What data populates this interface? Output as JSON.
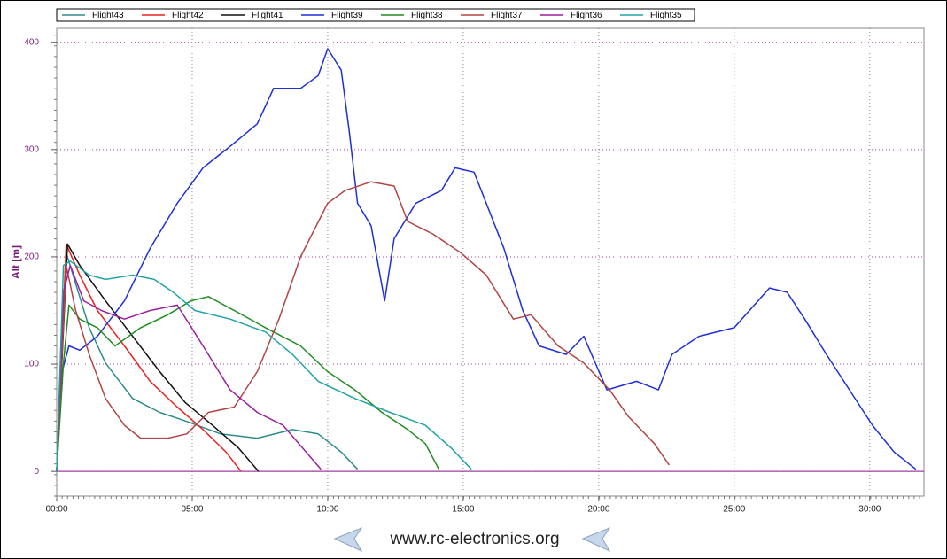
{
  "chart_data": {
    "type": "line",
    "y_label": "Alt [m]",
    "xlim": [
      0,
      32
    ],
    "ylim": [
      -23,
      413
    ],
    "xticks": [
      {
        "value": 0,
        "label": "00:00"
      },
      {
        "value": 5,
        "label": "05:00"
      },
      {
        "value": 10,
        "label": "10:00"
      },
      {
        "value": 15,
        "label": "15:00"
      },
      {
        "value": 20,
        "label": "20:00"
      },
      {
        "value": 25,
        "label": "25:00"
      },
      {
        "value": 30,
        "label": "30:00"
      }
    ],
    "yticks": [
      0,
      100,
      200,
      300,
      400
    ],
    "grid": true,
    "legend": "top",
    "series": [
      {
        "name": "Flight43",
        "color": "#2e8b8b",
        "x": [
          0,
          0.35,
          0.7,
          1.2,
          1.8,
          2.8,
          3.8,
          4.75,
          6.05,
          7.4,
          8.7,
          9.65,
          10.5,
          11.1
        ],
        "values": [
          0,
          204,
          175,
          134,
          101,
          68,
          55,
          47,
          35,
          31,
          39,
          35,
          18,
          2
        ]
      },
      {
        "name": "Flight42",
        "color": "#e8231e",
        "x": [
          0,
          0.35,
          0.85,
          1.5,
          2.5,
          3.45,
          4.45,
          5.4,
          6.25,
          6.8
        ],
        "values": [
          0,
          212,
          183,
          150,
          117,
          84,
          60,
          39,
          18,
          0
        ]
      },
      {
        "name": "Flight41",
        "color": "#111111",
        "x": [
          0,
          0.4,
          0.85,
          1.8,
          2.8,
          3.8,
          4.75,
          5.75,
          6.7,
          7.45
        ],
        "values": [
          0,
          212,
          192,
          159,
          126,
          93,
          64,
          43,
          22,
          0
        ]
      },
      {
        "name": "Flight39",
        "color": "#1f2fd8",
        "x": [
          0,
          0.2,
          0.45,
          0.85,
          1.5,
          2.5,
          3.45,
          4.45,
          5.4,
          6.4,
          7.4,
          8.0,
          9.0,
          9.65,
          10.0,
          10.5,
          10.8,
          11.1,
          11.6,
          12.1,
          12.45,
          13.25,
          14.2,
          14.7,
          15.4,
          15.85,
          16.5,
          17.2,
          17.8,
          18.8,
          19.45,
          20.3,
          21.4,
          22.2,
          22.7,
          23.7,
          25.0,
          26.3,
          26.95,
          27.6,
          28.4,
          29.25,
          30.1,
          30.9,
          31.7
        ],
        "values": [
          0,
          93,
          117,
          113,
          126,
          159,
          208,
          250,
          283,
          303,
          324,
          357,
          357,
          369,
          394,
          374,
          316,
          250,
          229,
          159,
          217,
          250,
          262,
          283,
          279,
          250,
          208,
          150,
          117,
          109,
          126,
          76,
          84,
          76,
          109,
          126,
          134,
          171,
          167,
          142,
          109,
          76,
          43,
          18,
          2
        ]
      },
      {
        "name": "Flight38",
        "color": "#1e8c1e",
        "x": [
          0,
          0.25,
          0.45,
          0.85,
          1.5,
          2.15,
          3.1,
          4.1,
          4.95,
          5.6,
          6.55,
          7.7,
          9.0,
          10.0,
          11.0,
          12.0,
          12.95,
          13.6,
          14.1
        ],
        "values": [
          0,
          101,
          155,
          142,
          134,
          117,
          134,
          146,
          159,
          163,
          150,
          134,
          117,
          93,
          76,
          55,
          39,
          26,
          2
        ]
      },
      {
        "name": "Flight37",
        "color": "#b24444",
        "x": [
          0,
          0.35,
          0.7,
          1.2,
          1.8,
          2.5,
          3.1,
          4.1,
          4.8,
          5.6,
          6.55,
          7.4,
          8.2,
          9.0,
          10.0,
          10.65,
          11.6,
          12.45,
          12.95,
          13.9,
          14.9,
          15.85,
          16.85,
          17.5,
          18.5,
          19.45,
          20.4,
          21.1,
          22.05,
          22.6
        ],
        "values": [
          0,
          192,
          150,
          109,
          68,
          43,
          31,
          31,
          35,
          55,
          60,
          93,
          142,
          200,
          250,
          262,
          270,
          266,
          233,
          221,
          204,
          183,
          142,
          146,
          117,
          101,
          76,
          51,
          26,
          6
        ]
      },
      {
        "name": "Flight36",
        "color": "#9b1fa0",
        "x": [
          0,
          0.25,
          0.5,
          1.0,
          1.65,
          2.5,
          3.45,
          4.45,
          5.4,
          6.4,
          7.4,
          8.35,
          9.2,
          9.75
        ],
        "values": [
          0,
          167,
          192,
          159,
          150,
          142,
          150,
          155,
          117,
          76,
          55,
          43,
          18,
          2
        ]
      },
      {
        "name": "Flight35",
        "color": "#22a3a3",
        "x": [
          0,
          0.25,
          0.5,
          1.2,
          1.8,
          2.8,
          3.6,
          4.3,
          5.1,
          6.4,
          7.7,
          8.7,
          9.65,
          11.0,
          12.3,
          13.6,
          14.55,
          15.3
        ],
        "values": [
          0,
          192,
          196,
          183,
          179,
          183,
          179,
          167,
          150,
          142,
          130,
          109,
          84,
          68,
          55,
          43,
          22,
          2
        ]
      }
    ]
  },
  "footer": "www.rc-electronics.org"
}
